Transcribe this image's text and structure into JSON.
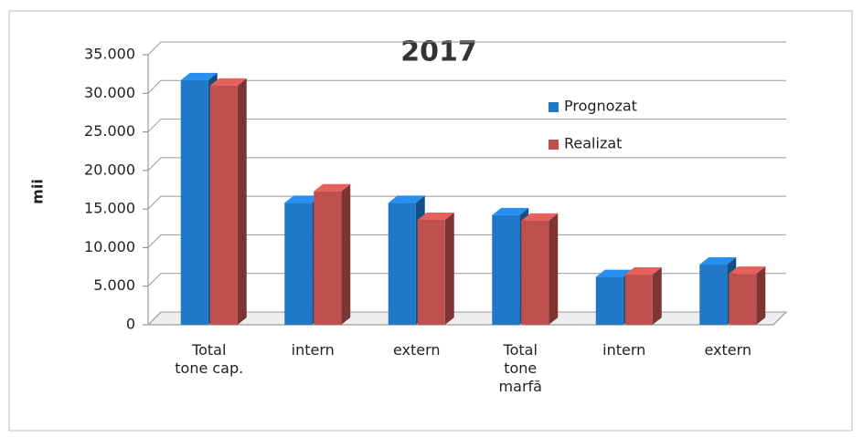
{
  "chart_data": {
    "type": "bar3d",
    "title": "2017",
    "y_label": "mii",
    "categories": [
      "Total tone cap.",
      "intern",
      "extern",
      "Total tone marfă",
      "intern",
      "extern"
    ],
    "series": [
      {
        "name": "Prognozat",
        "color": "#1f78c8",
        "values": [
          31700,
          15800,
          15800,
          14200,
          6200,
          7800
        ]
      },
      {
        "name": "Realizat",
        "color": "#c0504d",
        "values": [
          31000,
          17300,
          13600,
          13500,
          6500,
          6600
        ]
      }
    ],
    "ylim": [
      0,
      35000
    ],
    "yticks": [
      0,
      {
        "value": 5000,
        "label": "5.000"
      },
      {
        "value": 10000,
        "label": "10.000"
      },
      {
        "value": 15000,
        "label": "15.000"
      },
      {
        "value": 20000,
        "label": "20.000"
      },
      {
        "value": 25000,
        "label": "25.000"
      },
      {
        "value": 30000,
        "label": "30.000"
      },
      {
        "value": 35000,
        "label": "35.000"
      }
    ],
    "grid": true,
    "legend": "right"
  }
}
